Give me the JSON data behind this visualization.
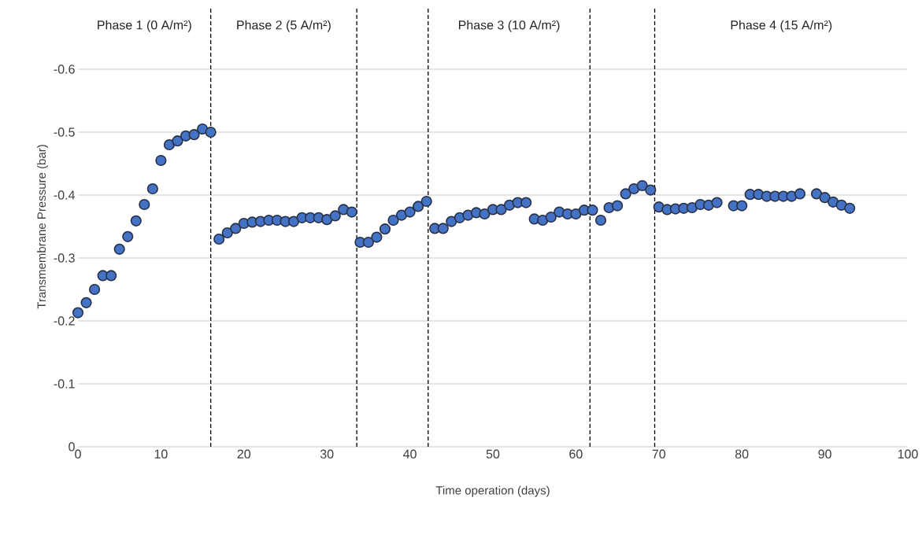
{
  "chart_data": {
    "type": "scatter",
    "xlabel": "Time operation (days)",
    "ylabel": "Transmembrane Pressure (bar)",
    "x": [
      0,
      1,
      2,
      3,
      4,
      5,
      6,
      7,
      8,
      9,
      10,
      11,
      12,
      13,
      14,
      15,
      16,
      17,
      18,
      19,
      20,
      21,
      22,
      23,
      24,
      25,
      26,
      27,
      28,
      29,
      30,
      31,
      32,
      33,
      34,
      35,
      36,
      37,
      38,
      39,
      40,
      41,
      42,
      43,
      44,
      45,
      46,
      47,
      48,
      49,
      50,
      51,
      52,
      53,
      54,
      55,
      56,
      57,
      58,
      59,
      60,
      61,
      62,
      63,
      64,
      65,
      66,
      67,
      68,
      69,
      70,
      71,
      72,
      73,
      74,
      75,
      76,
      77,
      79,
      80,
      81,
      82,
      83,
      84,
      85,
      86,
      87,
      89,
      90,
      91,
      92,
      93
    ],
    "values": [
      -0.213,
      -0.229,
      -0.25,
      -0.272,
      -0.272,
      -0.314,
      -0.334,
      -0.359,
      -0.385,
      -0.41,
      -0.455,
      -0.48,
      -0.486,
      -0.494,
      -0.496,
      -0.505,
      -0.5,
      -0.33,
      -0.34,
      -0.347,
      -0.355,
      -0.357,
      -0.358,
      -0.36,
      -0.36,
      -0.358,
      -0.358,
      -0.364,
      -0.364,
      -0.364,
      -0.361,
      -0.367,
      -0.377,
      -0.373,
      -0.325,
      -0.325,
      -0.333,
      -0.346,
      -0.36,
      -0.368,
      -0.373,
      -0.382,
      -0.39,
      -0.347,
      -0.347,
      -0.358,
      -0.364,
      -0.368,
      -0.372,
      -0.37,
      -0.377,
      -0.377,
      -0.384,
      -0.388,
      -0.388,
      -0.362,
      -0.36,
      -0.365,
      -0.373,
      -0.37,
      -0.37,
      -0.376,
      -0.376,
      -0.36,
      -0.38,
      -0.383,
      -0.402,
      -0.41,
      -0.415,
      -0.408,
      -0.381,
      -0.377,
      -0.378,
      -0.379,
      -0.38,
      -0.385,
      -0.384,
      -0.388,
      -0.383,
      -0.383,
      -0.401,
      -0.401,
      -0.398,
      -0.398,
      -0.398,
      -0.398,
      -0.402,
      -0.402,
      -0.396,
      -0.389,
      -0.384,
      -0.379
    ],
    "color": "#4472c4",
    "grid": "y",
    "xlim": [
      0,
      100
    ],
    "xticks": [
      0,
      10,
      20,
      30,
      40,
      50,
      60,
      70,
      80,
      90,
      100
    ],
    "ylim": [
      0,
      -0.7
    ],
    "yticks": [
      0,
      -0.1,
      -0.2,
      -0.3,
      -0.4,
      -0.5,
      -0.6
    ],
    "ref_lines": [
      {
        "axis": "x",
        "value": 16,
        "line_style": "dashed",
        "color": "#000000"
      },
      {
        "axis": "x",
        "value": 33.6,
        "line_style": "dashed",
        "color": "#000000"
      },
      {
        "axis": "x",
        "value": 42.2,
        "line_style": "dashed",
        "color": "#000000"
      },
      {
        "axis": "x",
        "value": 61.7,
        "line_style": "dashed",
        "color": "#000000"
      },
      {
        "axis": "x",
        "value": 69.5,
        "line_style": "dashed",
        "color": "#000000"
      }
    ],
    "annotations": [
      "Phase 1 (0 A/m²)",
      "Phase 2 (5 A/m²)",
      "Phase 3 (10 A/m²)",
      "Phase 4 (15 A/m²)"
    ]
  }
}
